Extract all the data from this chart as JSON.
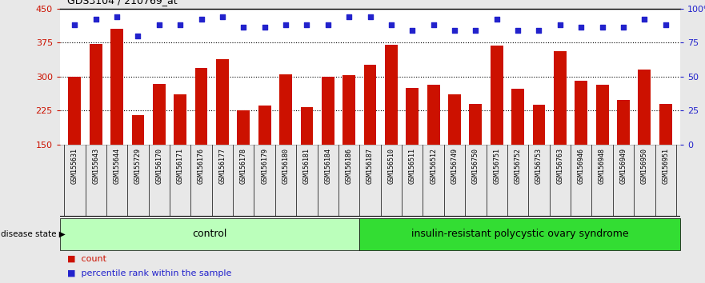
{
  "title": "GDS3104 / 210769_at",
  "samples": [
    "GSM155631",
    "GSM155643",
    "GSM155644",
    "GSM155729",
    "GSM156170",
    "GSM156171",
    "GSM156176",
    "GSM156177",
    "GSM156178",
    "GSM156179",
    "GSM156180",
    "GSM156181",
    "GSM156184",
    "GSM156186",
    "GSM156187",
    "GSM156510",
    "GSM156511",
    "GSM156512",
    "GSM156749",
    "GSM156750",
    "GSM156751",
    "GSM156752",
    "GSM156753",
    "GSM156763",
    "GSM156946",
    "GSM156948",
    "GSM156949",
    "GSM156950",
    "GSM156951"
  ],
  "bar_values": [
    300,
    372,
    405,
    215,
    283,
    260,
    318,
    338,
    225,
    235,
    305,
    233,
    300,
    302,
    325,
    370,
    275,
    282,
    260,
    240,
    368,
    273,
    238,
    355,
    290,
    282,
    248,
    316,
    240
  ],
  "dot_values": [
    88,
    92,
    94,
    80,
    88,
    88,
    92,
    94,
    86,
    86,
    88,
    88,
    88,
    94,
    94,
    88,
    84,
    88,
    84,
    84,
    92,
    84,
    84,
    88,
    86,
    86,
    86,
    92,
    88
  ],
  "n_control": 14,
  "ylim_left": [
    150,
    450
  ],
  "ylim_right": [
    0,
    100
  ],
  "yticks_left": [
    150,
    225,
    300,
    375,
    450
  ],
  "yticks_right": [
    0,
    25,
    50,
    75,
    100
  ],
  "ytick_labels_right": [
    "0",
    "25",
    "50",
    "75",
    "100%"
  ],
  "bar_color": "#cc1100",
  "dot_color": "#2222cc",
  "control_color": "#bbffbb",
  "disease_color": "#33dd33",
  "background_color": "#e8e8e8",
  "plot_bg_color": "#ffffff",
  "xtick_bg_color": "#cccccc",
  "label_control": "control",
  "label_disease": "insulin-resistant polycystic ovary syndrome",
  "legend_count": "count",
  "legend_pct": "percentile rank within the sample",
  "disease_state_label": "disease state"
}
